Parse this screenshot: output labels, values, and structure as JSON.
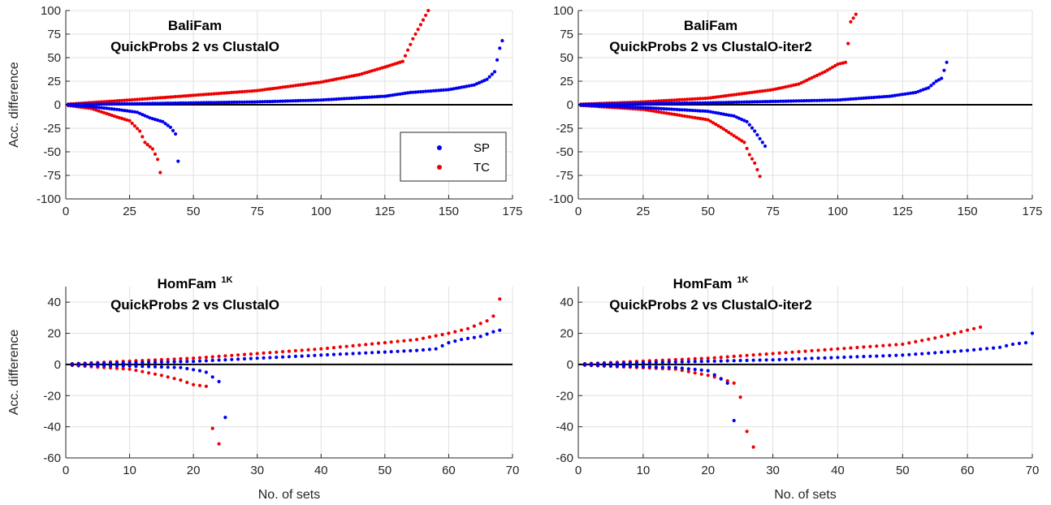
{
  "chart_data": [
    {
      "type": "scatter",
      "title_lines": [
        "BaliFam",
        "QuickProbs 2   vs   ClustalO"
      ],
      "title_sup": "",
      "xlabel": "",
      "ylabel": "Acc. difference",
      "xlim": [
        0,
        175
      ],
      "ylim": [
        -100,
        100
      ],
      "xticks": [
        0,
        25,
        50,
        75,
        100,
        125,
        150,
        175
      ],
      "yticks": [
        -100,
        -75,
        -50,
        -25,
        0,
        25,
        50,
        75,
        100
      ],
      "grid": true,
      "zero_line": true,
      "legend": {
        "placement": "right-of-center",
        "entries": [
          "SP",
          "TC"
        ]
      },
      "series": [
        {
          "name": "SP",
          "color": "#0000ee",
          "positive": {
            "x_start": 1,
            "x_end": 171,
            "y_start": 0.3,
            "points": [
              [
                0,
                0.3
              ],
              [
                25,
                1
              ],
              [
                50,
                2
              ],
              [
                75,
                3
              ],
              [
                100,
                5
              ],
              [
                125,
                9
              ],
              [
                135,
                13
              ],
              [
                150,
                16
              ],
              [
                160,
                21
              ],
              [
                165,
                27
              ],
              [
                168,
                35
              ],
              [
                170,
                60
              ],
              [
                171,
                68
              ]
            ]
          },
          "negative": {
            "x_start": 1,
            "x_end": 44,
            "y_start": -0.3,
            "points": [
              [
                0,
                -0.3
              ],
              [
                10,
                -2
              ],
              [
                20,
                -5
              ],
              [
                28,
                -8
              ],
              [
                33,
                -14
              ],
              [
                38,
                -18
              ],
              [
                41,
                -24
              ],
              [
                43,
                -31
              ],
              [
                44,
                -60
              ]
            ]
          }
        },
        {
          "name": "TC",
          "color": "#ee0000",
          "positive": {
            "x_start": 1,
            "x_end": 142,
            "y_start": 0.5,
            "points": [
              [
                0,
                0.5
              ],
              [
                25,
                5
              ],
              [
                50,
                10
              ],
              [
                75,
                15
              ],
              [
                100,
                24
              ],
              [
                115,
                32
              ],
              [
                125,
                40
              ],
              [
                132,
                46
              ],
              [
                136,
                70
              ],
              [
                139,
                85
              ],
              [
                142,
                100
              ]
            ]
          },
          "negative": {
            "x_start": 1,
            "x_end": 37,
            "y_start": -0.5,
            "points": [
              [
                0,
                -0.5
              ],
              [
                10,
                -4
              ],
              [
                20,
                -13
              ],
              [
                25,
                -17
              ],
              [
                29,
                -28
              ],
              [
                31,
                -40
              ],
              [
                34,
                -47
              ],
              [
                36,
                -58
              ],
              [
                37,
                -72
              ]
            ]
          }
        }
      ]
    },
    {
      "type": "scatter",
      "title_lines": [
        "BaliFam",
        "QuickProbs 2 vs ClustalO-iter2"
      ],
      "title_sup": "",
      "xlabel": "",
      "ylabel": "",
      "xlim": [
        0,
        175
      ],
      "ylim": [
        -100,
        100
      ],
      "xticks": [
        0,
        25,
        50,
        75,
        100,
        125,
        150,
        175
      ],
      "yticks": [
        -100,
        -75,
        -50,
        -25,
        0,
        25,
        50,
        75,
        100
      ],
      "grid": true,
      "zero_line": true,
      "series": [
        {
          "name": "SP",
          "color": "#0000ee",
          "positive": {
            "x_start": 1,
            "x_end": 142,
            "y_start": 0.3,
            "points": [
              [
                0,
                0.3
              ],
              [
                50,
                2
              ],
              [
                100,
                5
              ],
              [
                120,
                9
              ],
              [
                130,
                13
              ],
              [
                135,
                18
              ],
              [
                138,
                25
              ],
              [
                140,
                28
              ],
              [
                142,
                45
              ]
            ]
          },
          "negative": {
            "x_start": 1,
            "x_end": 72,
            "y_start": -0.3,
            "points": [
              [
                0,
                -0.3
              ],
              [
                25,
                -3
              ],
              [
                50,
                -7
              ],
              [
                60,
                -12
              ],
              [
                65,
                -18
              ],
              [
                68,
                -28
              ],
              [
                70,
                -36
              ],
              [
                72,
                -44
              ]
            ]
          }
        },
        {
          "name": "TC",
          "color": "#ee0000",
          "positive": {
            "x_start": 1,
            "x_end": 107,
            "y_start": 0.5,
            "points": [
              [
                0,
                0.5
              ],
              [
                25,
                3
              ],
              [
                50,
                7
              ],
              [
                75,
                16
              ],
              [
                85,
                22
              ],
              [
                95,
                35
              ],
              [
                100,
                43
              ],
              [
                103,
                45
              ],
              [
                104,
                65
              ],
              [
                105,
                88
              ],
              [
                107,
                96
              ]
            ]
          },
          "negative": {
            "x_start": 1,
            "x_end": 70,
            "y_start": -0.5,
            "points": [
              [
                0,
                -0.5
              ],
              [
                25,
                -5
              ],
              [
                50,
                -16
              ],
              [
                55,
                -24
              ],
              [
                60,
                -33
              ],
              [
                64,
                -40
              ],
              [
                66,
                -53
              ],
              [
                68,
                -62
              ],
              [
                70,
                -76
              ]
            ]
          }
        }
      ]
    },
    {
      "type": "scatter",
      "title_lines": [
        "HomFam",
        "QuickProbs 2    vs    ClustalO"
      ],
      "title_sup": "1K",
      "xlabel": "No. of sets",
      "ylabel": "Acc. difference",
      "xlim": [
        0,
        70
      ],
      "ylim": [
        -60,
        50
      ],
      "xticks": [
        0,
        10,
        20,
        30,
        40,
        50,
        60,
        70
      ],
      "yticks": [
        -60,
        -40,
        -20,
        0,
        20,
        40
      ],
      "grid": true,
      "zero_line": true,
      "series": [
        {
          "name": "SP",
          "color": "#0000ee",
          "positive": {
            "x_start": 1,
            "x_end": 68,
            "y_start": 0.2,
            "points": [
              [
                0,
                0.2
              ],
              [
                20,
                2
              ],
              [
                40,
                6
              ],
              [
                55,
                9
              ],
              [
                58,
                10
              ],
              [
                60,
                14
              ],
              [
                62,
                16
              ],
              [
                65,
                18
              ],
              [
                67,
                21
              ],
              [
                68,
                22
              ]
            ]
          },
          "negative": {
            "x_start": 1,
            "x_end": 25,
            "y_start": -0.2,
            "points": [
              [
                0,
                -0.2
              ],
              [
                10,
                -1
              ],
              [
                18,
                -2
              ],
              [
                21,
                -4
              ],
              [
                22,
                -5
              ],
              [
                24,
                -11
              ],
              [
                25,
                -34
              ]
            ]
          }
        },
        {
          "name": "TC",
          "color": "#ee0000",
          "positive": {
            "x_start": 1,
            "x_end": 68,
            "y_start": 0.3,
            "points": [
              [
                0,
                0.3
              ],
              [
                20,
                4
              ],
              [
                40,
                10
              ],
              [
                55,
                16
              ],
              [
                60,
                20
              ],
              [
                63,
                23
              ],
              [
                66,
                28
              ],
              [
                67,
                31
              ],
              [
                68,
                42
              ]
            ]
          },
          "negative": {
            "x_start": 1,
            "x_end": 24,
            "y_start": -0.3,
            "points": [
              [
                0,
                -0.3
              ],
              [
                10,
                -3
              ],
              [
                15,
                -7
              ],
              [
                18,
                -10
              ],
              [
                20,
                -13
              ],
              [
                22,
                -14
              ],
              [
                23,
                -41
              ],
              [
                24,
                -51
              ]
            ]
          }
        }
      ]
    },
    {
      "type": "scatter",
      "title_lines": [
        "HomFam",
        "QuickProbs 2 vs ClustalO-iter2"
      ],
      "title_sup": "1K",
      "xlabel": "No. of sets",
      "ylabel": "",
      "xlim": [
        0,
        70
      ],
      "ylim": [
        -60,
        50
      ],
      "xticks": [
        0,
        10,
        20,
        30,
        40,
        50,
        60,
        70
      ],
      "yticks": [
        -60,
        -40,
        -20,
        0,
        20,
        40
      ],
      "grid": true,
      "zero_line": true,
      "series": [
        {
          "name": "SP",
          "color": "#0000ee",
          "positive": {
            "x_start": 1,
            "x_end": 70,
            "y_start": 0.2,
            "points": [
              [
                0,
                0.2
              ],
              [
                30,
                3
              ],
              [
                50,
                6
              ],
              [
                60,
                9
              ],
              [
                65,
                11
              ],
              [
                67,
                13
              ],
              [
                69,
                14
              ],
              [
                70,
                20
              ]
            ]
          },
          "negative": {
            "x_start": 1,
            "x_end": 24,
            "y_start": -0.2,
            "points": [
              [
                0,
                -0.2
              ],
              [
                15,
                -2
              ],
              [
                20,
                -4
              ],
              [
                23,
                -12
              ],
              [
                24,
                -36
              ]
            ]
          }
        },
        {
          "name": "TC",
          "color": "#ee0000",
          "positive": {
            "x_start": 1,
            "x_end": 62,
            "y_start": 0.3,
            "points": [
              [
                0,
                0.3
              ],
              [
                20,
                4
              ],
              [
                40,
                10
              ],
              [
                50,
                13
              ],
              [
                55,
                17
              ],
              [
                58,
                20
              ],
              [
                60,
                22
              ],
              [
                62,
                24
              ]
            ]
          },
          "negative": {
            "x_start": 1,
            "x_end": 27,
            "y_start": -0.3,
            "points": [
              [
                0,
                -0.3
              ],
              [
                15,
                -3
              ],
              [
                20,
                -7
              ],
              [
                22,
                -9
              ],
              [
                24,
                -12
              ],
              [
                25,
                -21
              ],
              [
                26,
                -43
              ],
              [
                27,
                -53
              ]
            ]
          }
        }
      ]
    }
  ]
}
